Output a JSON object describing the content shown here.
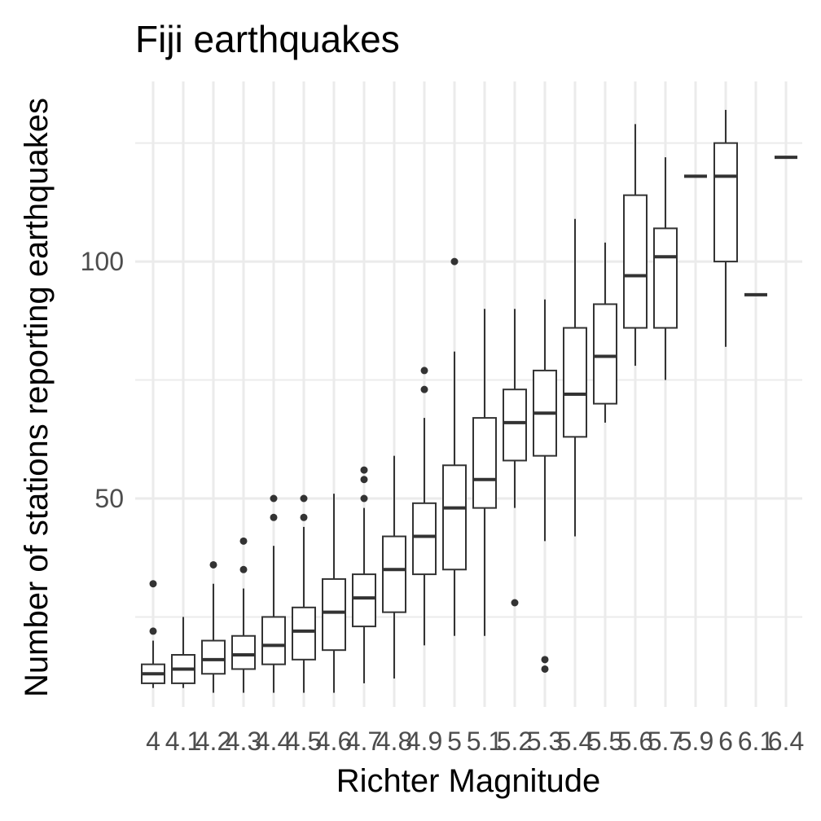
{
  "chart_data": {
    "type": "boxplot",
    "title": "Fiji earthquakes",
    "xlabel": "Richter Magnitude",
    "ylabel": "Number of stations reporting earthquakes",
    "ylim": [
      6,
      138
    ],
    "y_major_ticks": [
      50,
      100
    ],
    "y_minor_ticks": [
      25,
      75,
      125
    ],
    "categories": [
      "4",
      "4.1",
      "4.2",
      "4.3",
      "4.4",
      "4.5",
      "4.6",
      "4.7",
      "4.8",
      "4.9",
      "5",
      "5.1",
      "5.2",
      "5.3",
      "5.4",
      "5.5",
      "5.6",
      "5.7",
      "5.9",
      "6",
      "6.1",
      "6.4"
    ],
    "boxes": [
      {
        "x": "4",
        "whisker_low": 10,
        "q1": 11,
        "median": 13,
        "q3": 15,
        "whisker_high": 20,
        "outliers": [
          22,
          32
        ]
      },
      {
        "x": "4.1",
        "whisker_low": 10,
        "q1": 11,
        "median": 14,
        "q3": 17,
        "whisker_high": 25,
        "outliers": []
      },
      {
        "x": "4.2",
        "whisker_low": 9,
        "q1": 13,
        "median": 16,
        "q3": 20,
        "whisker_high": 32,
        "outliers": [
          36
        ]
      },
      {
        "x": "4.3",
        "whisker_low": 9,
        "q1": 14,
        "median": 17,
        "q3": 21,
        "whisker_high": 31,
        "outliers": [
          35,
          41
        ]
      },
      {
        "x": "4.4",
        "whisker_low": 9,
        "q1": 15,
        "median": 19,
        "q3": 25,
        "whisker_high": 40,
        "outliers": [
          46,
          50
        ]
      },
      {
        "x": "4.5",
        "whisker_low": 9,
        "q1": 16,
        "median": 22,
        "q3": 27,
        "whisker_high": 44,
        "outliers": [
          46,
          50
        ]
      },
      {
        "x": "4.6",
        "whisker_low": 9,
        "q1": 18,
        "median": 26,
        "q3": 33,
        "whisker_high": 51,
        "outliers": []
      },
      {
        "x": "4.7",
        "whisker_low": 11,
        "q1": 23,
        "median": 29,
        "q3": 34,
        "whisker_high": 48,
        "outliers": [
          50,
          54,
          56
        ]
      },
      {
        "x": "4.8",
        "whisker_low": 12,
        "q1": 26,
        "median": 35,
        "q3": 42,
        "whisker_high": 59,
        "outliers": []
      },
      {
        "x": "4.9",
        "whisker_low": 19,
        "q1": 34,
        "median": 42,
        "q3": 49,
        "whisker_high": 67,
        "outliers": [
          73,
          77
        ]
      },
      {
        "x": "5",
        "whisker_low": 21,
        "q1": 35,
        "median": 48,
        "q3": 57,
        "whisker_high": 81,
        "outliers": [
          100
        ]
      },
      {
        "x": "5.1",
        "whisker_low": 21,
        "q1": 48,
        "median": 54,
        "q3": 67,
        "whisker_high": 90,
        "outliers": []
      },
      {
        "x": "5.2",
        "whisker_low": 48,
        "q1": 58,
        "median": 66,
        "q3": 73,
        "whisker_high": 90,
        "outliers": [
          28
        ]
      },
      {
        "x": "5.3",
        "whisker_low": 41,
        "q1": 59,
        "median": 68,
        "q3": 77,
        "whisker_high": 92,
        "outliers": [
          14,
          16
        ]
      },
      {
        "x": "5.4",
        "whisker_low": 42,
        "q1": 63,
        "median": 72,
        "q3": 86,
        "whisker_high": 109,
        "outliers": []
      },
      {
        "x": "5.5",
        "whisker_low": 66,
        "q1": 70,
        "median": 80,
        "q3": 91,
        "whisker_high": 104,
        "outliers": []
      },
      {
        "x": "5.6",
        "whisker_low": 78,
        "q1": 86,
        "median": 97,
        "q3": 114,
        "whisker_high": 129,
        "outliers": []
      },
      {
        "x": "5.7",
        "whisker_low": 75,
        "q1": 86,
        "median": 101,
        "q3": 107,
        "whisker_high": 122,
        "outliers": []
      },
      {
        "x": "5.9",
        "whisker_low": 118,
        "q1": 118,
        "median": 118,
        "q3": 118,
        "whisker_high": 118,
        "outliers": []
      },
      {
        "x": "6",
        "whisker_low": 82,
        "q1": 100,
        "median": 118,
        "q3": 125,
        "whisker_high": 132,
        "outliers": []
      },
      {
        "x": "6.1",
        "whisker_low": 93,
        "q1": 93,
        "median": 93,
        "q3": 93,
        "whisker_high": 93,
        "outliers": []
      },
      {
        "x": "6.4",
        "whisker_low": 122,
        "q1": 122,
        "median": 122,
        "q3": 122,
        "whisker_high": 122,
        "outliers": []
      }
    ],
    "grid": true,
    "legend": "none"
  }
}
